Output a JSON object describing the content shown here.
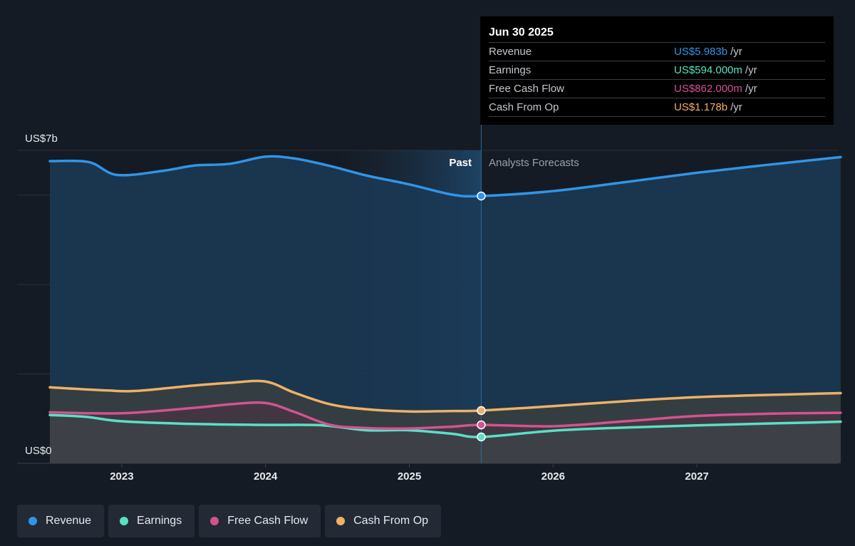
{
  "chart_data": {
    "type": "area",
    "y_axis": {
      "top_label": "US$7b",
      "bottom_label": "US$0",
      "ylim": [
        0,
        7
      ]
    },
    "x_ticks": [
      "2023",
      "2024",
      "2025",
      "2026",
      "2027"
    ],
    "region_labels": {
      "past": "Past",
      "forecast": "Analysts Forecasts"
    },
    "divider_x": 2025.5,
    "grid": true,
    "series": [
      {
        "name": "Revenue",
        "color": "#2f95e8",
        "points": [
          [
            2022.5,
            6.76
          ],
          [
            2022.77,
            6.74
          ],
          [
            2022.97,
            6.45
          ],
          [
            2023.3,
            6.55
          ],
          [
            2023.5,
            6.66
          ],
          [
            2023.75,
            6.7
          ],
          [
            2024.0,
            6.86
          ],
          [
            2024.2,
            6.82
          ],
          [
            2024.45,
            6.65
          ],
          [
            2024.7,
            6.44
          ],
          [
            2025.0,
            6.24
          ],
          [
            2025.3,
            6.01
          ],
          [
            2025.5,
            5.98
          ],
          [
            2026.0,
            6.09
          ],
          [
            2026.5,
            6.29
          ],
          [
            2027.0,
            6.5
          ],
          [
            2027.5,
            6.68
          ],
          [
            2028.0,
            6.85
          ]
        ]
      },
      {
        "name": "Earnings",
        "color": "#58e1c4",
        "points": [
          [
            2022.5,
            1.08
          ],
          [
            2022.75,
            1.04
          ],
          [
            2023.0,
            0.94
          ],
          [
            2023.5,
            0.88
          ],
          [
            2024.0,
            0.86
          ],
          [
            2024.4,
            0.85
          ],
          [
            2024.7,
            0.74
          ],
          [
            2025.0,
            0.74
          ],
          [
            2025.3,
            0.66
          ],
          [
            2025.5,
            0.59
          ],
          [
            2026.0,
            0.73
          ],
          [
            2026.5,
            0.8
          ],
          [
            2027.0,
            0.85
          ],
          [
            2027.5,
            0.89
          ],
          [
            2028.0,
            0.93
          ]
        ]
      },
      {
        "name": "Free Cash Flow",
        "color": "#d2538f",
        "points": [
          [
            2022.5,
            1.14
          ],
          [
            2023.0,
            1.12
          ],
          [
            2023.5,
            1.24
          ],
          [
            2023.75,
            1.32
          ],
          [
            2024.0,
            1.35
          ],
          [
            2024.2,
            1.15
          ],
          [
            2024.45,
            0.86
          ],
          [
            2024.7,
            0.79
          ],
          [
            2025.0,
            0.78
          ],
          [
            2025.3,
            0.82
          ],
          [
            2025.5,
            0.86
          ],
          [
            2026.0,
            0.83
          ],
          [
            2026.5,
            0.94
          ],
          [
            2027.0,
            1.06
          ],
          [
            2027.5,
            1.11
          ],
          [
            2028.0,
            1.13
          ]
        ]
      },
      {
        "name": "Cash From Op",
        "color": "#eeb167",
        "points": [
          [
            2022.5,
            1.7
          ],
          [
            2022.9,
            1.63
          ],
          [
            2023.1,
            1.62
          ],
          [
            2023.5,
            1.74
          ],
          [
            2023.75,
            1.8
          ],
          [
            2024.0,
            1.83
          ],
          [
            2024.2,
            1.58
          ],
          [
            2024.45,
            1.32
          ],
          [
            2024.7,
            1.21
          ],
          [
            2025.0,
            1.16
          ],
          [
            2025.3,
            1.17
          ],
          [
            2025.5,
            1.18
          ],
          [
            2026.0,
            1.28
          ],
          [
            2026.5,
            1.39
          ],
          [
            2027.0,
            1.48
          ],
          [
            2027.5,
            1.53
          ],
          [
            2028.0,
            1.57
          ]
        ]
      }
    ]
  },
  "tooltip": {
    "date": "Jun 30 2025",
    "rows": [
      {
        "label": "Revenue",
        "value": "US$5.983b",
        "unit": "/yr",
        "color": "#2f95e8"
      },
      {
        "label": "Earnings",
        "value": "US$594.000m",
        "unit": "/yr",
        "color": "#58e1c4"
      },
      {
        "label": "Free Cash Flow",
        "value": "US$862.000m",
        "unit": "/yr",
        "color": "#d2538f"
      },
      {
        "label": "Cash From Op",
        "value": "US$1.178b",
        "unit": "/yr",
        "color": "#eeb167"
      }
    ]
  },
  "legend": [
    {
      "label": "Revenue",
      "color": "#2f95e8"
    },
    {
      "label": "Earnings",
      "color": "#58e1c4"
    },
    {
      "label": "Free Cash Flow",
      "color": "#d2538f"
    },
    {
      "label": "Cash From Op",
      "color": "#eeb167"
    }
  ]
}
